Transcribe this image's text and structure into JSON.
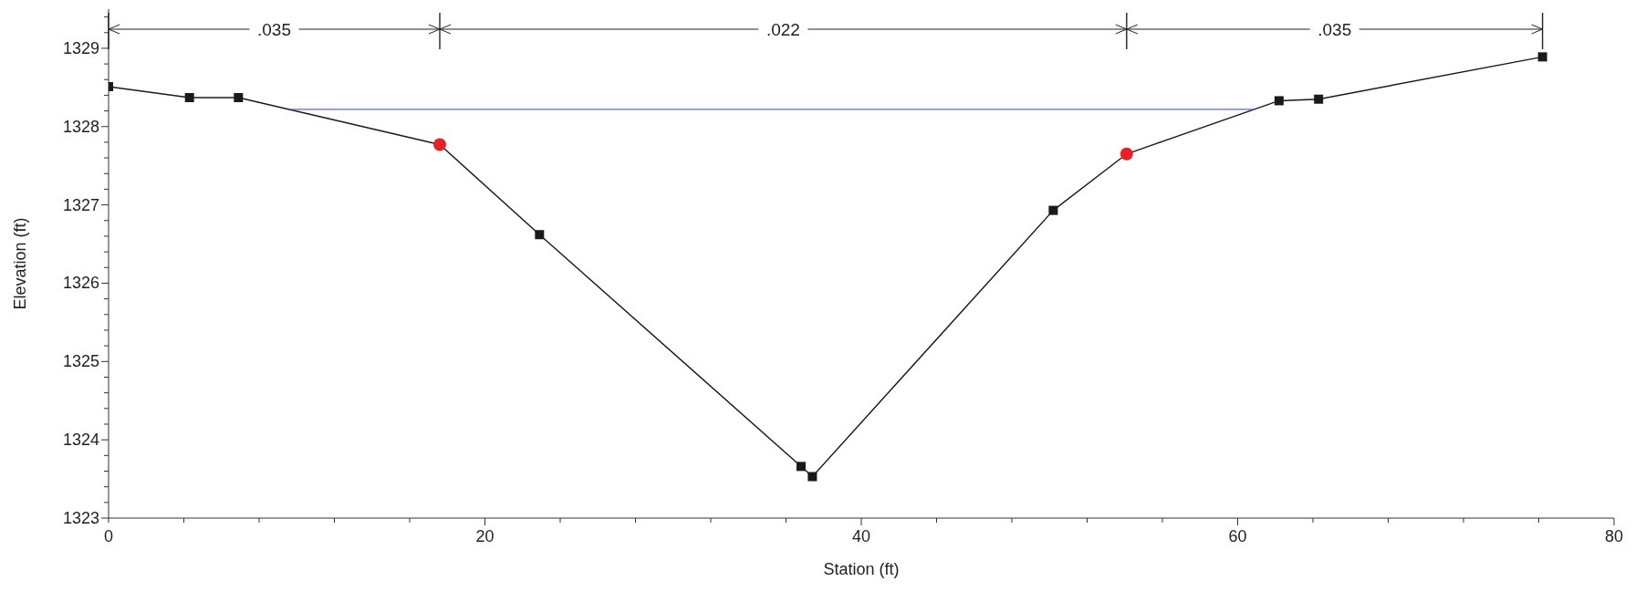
{
  "chart_data": {
    "type": "line",
    "xlabel": "Station (ft)",
    "ylabel": "Elevation (ft)",
    "xlim": [
      0,
      80
    ],
    "ylim": [
      1323,
      1329.5
    ],
    "xticks": [
      0,
      {
        "value": 4,
        "label": null
      },
      {
        "value": 8,
        "label": null
      },
      {
        "value": 12,
        "label": null
      },
      {
        "value": 16,
        "label": null
      },
      20,
      {
        "value": 24,
        "label": null
      },
      {
        "value": 28,
        "label": null
      },
      {
        "value": 32,
        "label": null
      },
      {
        "value": 36,
        "label": null
      },
      40,
      {
        "value": 44,
        "label": null
      },
      {
        "value": 48,
        "label": null
      },
      {
        "value": 52,
        "label": null
      },
      {
        "value": 56,
        "label": null
      },
      60,
      {
        "value": 64,
        "label": null
      },
      {
        "value": 68,
        "label": null
      },
      {
        "value": 72,
        "label": null
      },
      {
        "value": 76,
        "label": null
      },
      80
    ],
    "yticks": [
      1323,
      {
        "value": 1323.2,
        "label": null
      },
      {
        "value": 1323.4,
        "label": null
      },
      {
        "value": 1323.6,
        "label": null
      },
      {
        "value": 1323.8,
        "label": null
      },
      1324,
      {
        "value": 1324.2,
        "label": null
      },
      {
        "value": 1324.4,
        "label": null
      },
      {
        "value": 1324.6,
        "label": null
      },
      {
        "value": 1324.8,
        "label": null
      },
      1325,
      {
        "value": 1325.2,
        "label": null
      },
      {
        "value": 1325.4,
        "label": null
      },
      {
        "value": 1325.6,
        "label": null
      },
      {
        "value": 1325.8,
        "label": null
      },
      1326,
      {
        "value": 1326.2,
        "label": null
      },
      {
        "value": 1326.4,
        "label": null
      },
      {
        "value": 1326.6,
        "label": null
      },
      {
        "value": 1326.8,
        "label": null
      },
      1327,
      {
        "value": 1327.2,
        "label": null
      },
      {
        "value": 1327.4,
        "label": null
      },
      {
        "value": 1327.6,
        "label": null
      },
      {
        "value": 1327.8,
        "label": null
      },
      1328,
      {
        "value": 1328.2,
        "label": null
      },
      {
        "value": 1328.4,
        "label": null
      },
      {
        "value": 1328.6,
        "label": null
      },
      {
        "value": 1328.8,
        "label": null
      },
      1329,
      {
        "value": 1329.2,
        "label": null
      },
      {
        "value": 1329.4,
        "label": null
      }
    ],
    "grid": false,
    "legend": false,
    "series": [
      {
        "color": "#1a1a1a",
        "marker": "square",
        "x": [
          0,
          4.3,
          6.9,
          17.6,
          22.9,
          36.8,
          37.4,
          50.2,
          54.1,
          62.2,
          64.3,
          76.2
        ],
        "values": [
          1328.51,
          1328.37,
          1328.37,
          1327.77,
          1326.62,
          1323.66,
          1323.53,
          1326.93,
          1327.65,
          1328.33,
          1328.35,
          1328.89
        ]
      },
      {
        "type": "scatter",
        "color": "#e82127",
        "marker": "circle",
        "x": [
          17.6,
          54.1
        ],
        "values": [
          1327.77,
          1327.65
        ]
      },
      {
        "color": "#4a6fc4",
        "marker": "none",
        "x": [
          9.7,
          60.9
        ],
        "values": [
          1328.22,
          1328.22
        ]
      }
    ],
    "annotations": [
      ".035",
      ".022",
      ".035"
    ]
  }
}
